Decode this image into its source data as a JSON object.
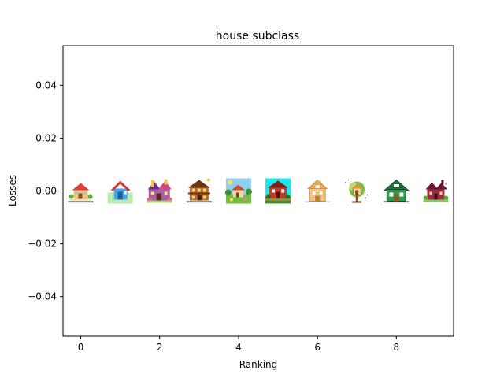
{
  "chart_data": {
    "type": "scatter",
    "title": "house subclass",
    "xlabel": "Ranking",
    "ylabel": "Losses",
    "xlim": [
      -0.45,
      9.45
    ],
    "ylim": [
      -0.055,
      0.055
    ],
    "x_ticks": [
      0,
      2,
      4,
      6,
      8
    ],
    "x_tick_labels": [
      "0",
      "2",
      "4",
      "6",
      "8"
    ],
    "y_ticks": [
      -0.04,
      -0.02,
      0.0,
      0.02,
      0.04
    ],
    "y_tick_labels": [
      "−0.04",
      "−0.02",
      "0.00",
      "0.02",
      "0.04"
    ],
    "grid": false,
    "marker": "house-thumbnail-image",
    "points": [
      {
        "x": 0,
        "y": 0.0,
        "icon": "house-icon-small-cottage"
      },
      {
        "x": 1,
        "y": 0.0,
        "icon": "house-icon-blue-roof"
      },
      {
        "x": 2,
        "y": 0.0,
        "icon": "house-icon-purple-castle"
      },
      {
        "x": 3,
        "y": 0.0,
        "icon": "house-icon-brown-two-story"
      },
      {
        "x": 4,
        "y": 0.0,
        "icon": "house-icon-scenic-village"
      },
      {
        "x": 5,
        "y": 0.0,
        "icon": "house-icon-red-cottage-cyan-sky"
      },
      {
        "x": 6,
        "y": 0.0,
        "icon": "house-icon-tan-house"
      },
      {
        "x": 7,
        "y": 0.0,
        "icon": "house-icon-cartoon-treehouse"
      },
      {
        "x": 8,
        "y": 0.0,
        "icon": "house-icon-green-barn"
      },
      {
        "x": 9,
        "y": 0.0,
        "icon": "house-icon-maroon-mansion"
      }
    ]
  }
}
